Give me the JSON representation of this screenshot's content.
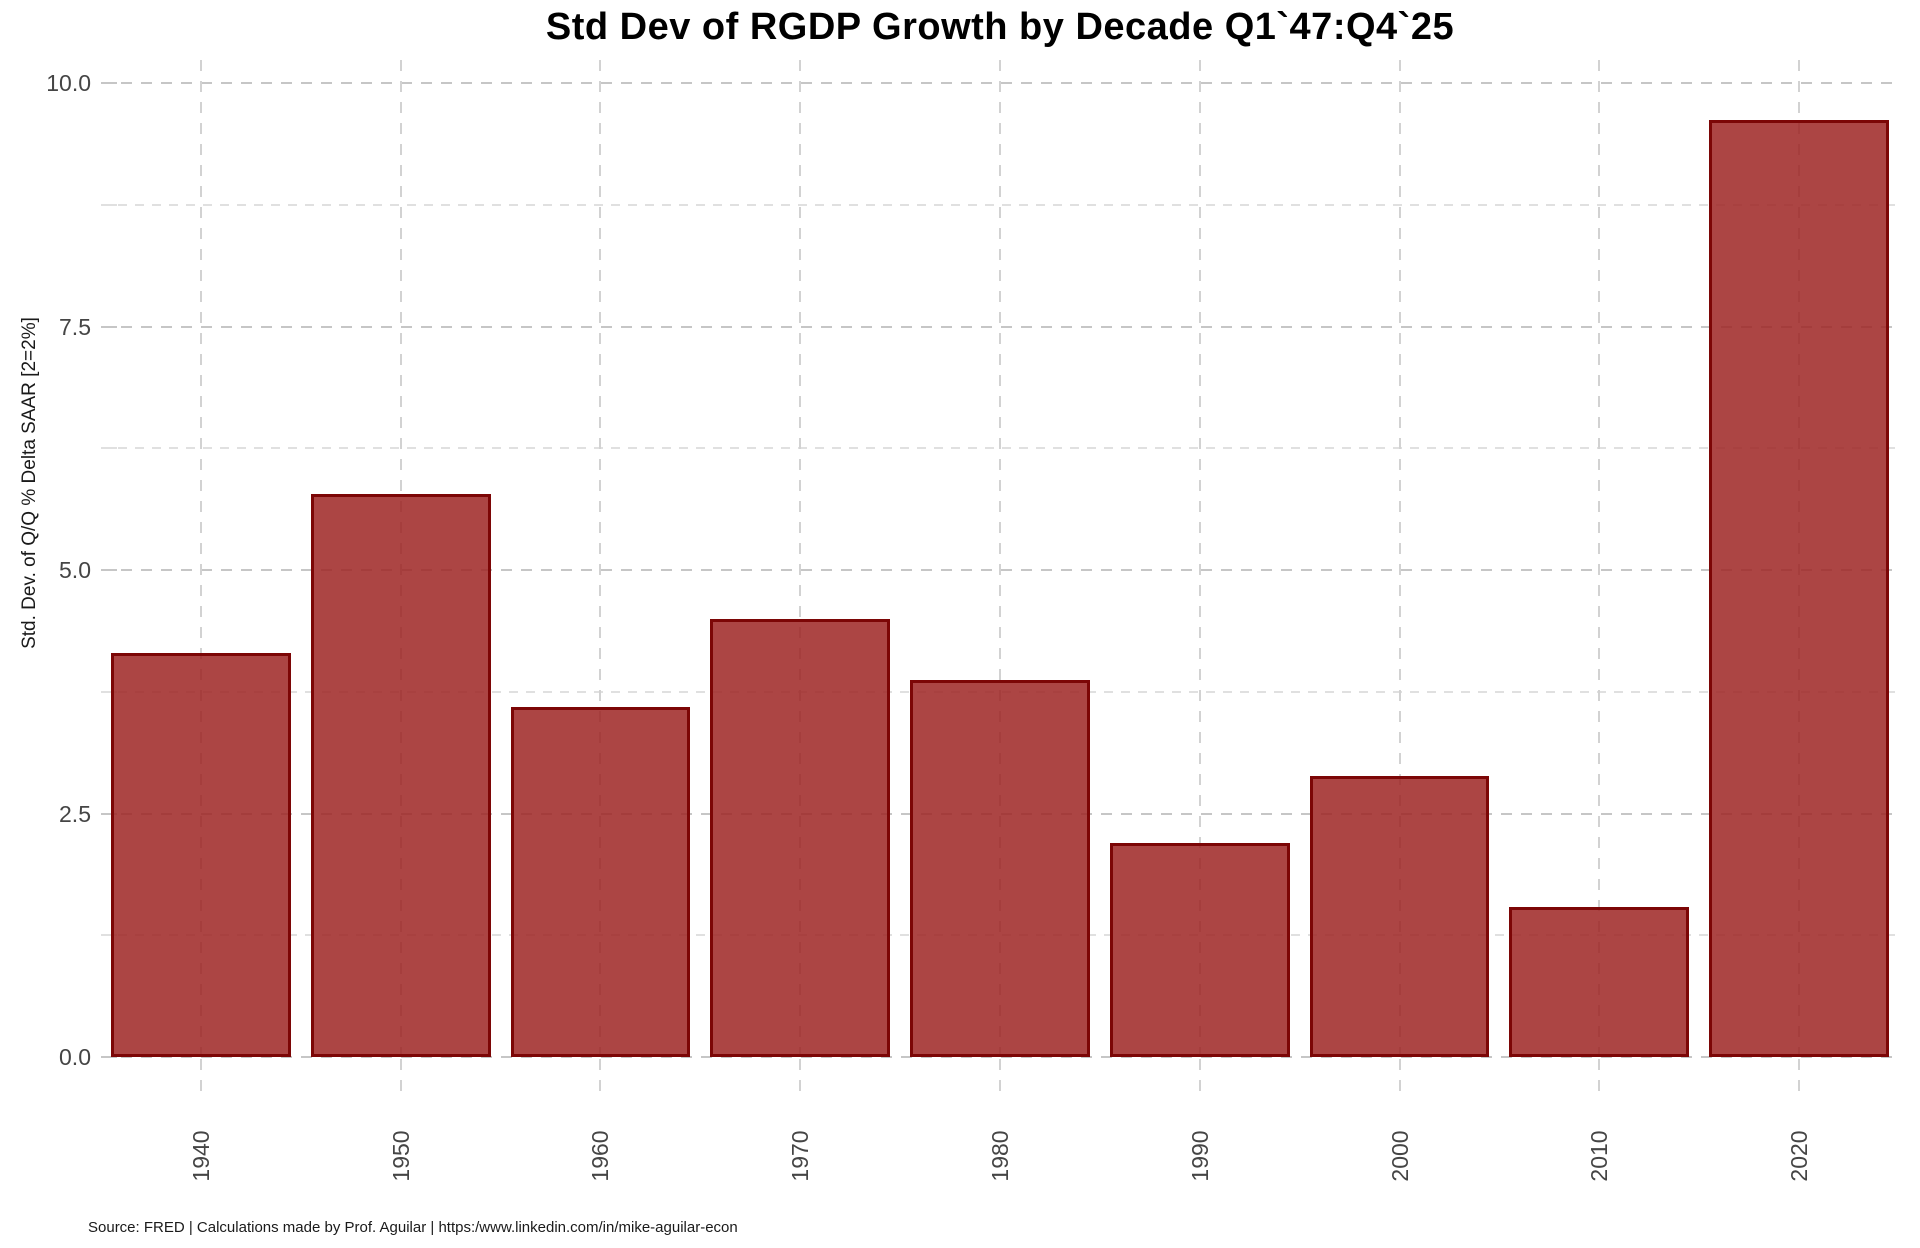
{
  "title": "Std Dev of RGDP Growth by Decade Q1`47:Q4`25",
  "source_note": "Source: FRED | Calculations made by Prof. Aguilar | https:/www.linkedin.com/in/mike-aguilar-econ",
  "colors": {
    "bar_fill": "#ad4b48",
    "bar_border": "#7c0606",
    "grid_major": "#c6c6c6",
    "grid_minor": "#e0e0e0",
    "axis_text": "#454545",
    "title_text": "#000000",
    "background": "#ffffff"
  },
  "chart_data": {
    "type": "bar",
    "title": "Std Dev of RGDP Growth by Decade Q1`47:Q4`25",
    "categories": [
      "1940",
      "1950",
      "1960",
      "1970",
      "1980",
      "1990",
      "2000",
      "2010",
      "2020"
    ],
    "values": [
      4.15,
      5.78,
      3.59,
      4.5,
      3.87,
      2.2,
      2.88,
      1.54,
      9.62
    ],
    "xlabel": "",
    "ylabel": "Std. Dev. of Q/Q % Delta SAAR [2=2%]",
    "ylim": [
      0,
      10
    ],
    "yticks_major": [
      0.0,
      2.5,
      5.0,
      7.5,
      10.0
    ],
    "ytick_labels": [
      "0.0",
      "2.5",
      "5.0",
      "7.5",
      "10.0"
    ],
    "yticks_minor": [
      1.25,
      3.75,
      6.25,
      8.75
    ],
    "grid": "dashed-major-and-minor",
    "legend": "none",
    "bar_relative_width": 0.9
  }
}
